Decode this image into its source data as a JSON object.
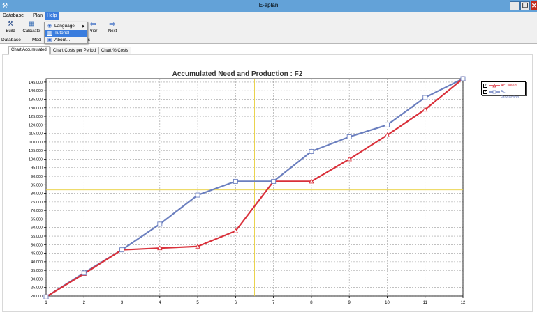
{
  "window": {
    "title": "E-aplan",
    "min_glyph": "–",
    "max_glyph": "❐",
    "close_glyph": "✕"
  },
  "menu": {
    "database": "Database",
    "plan": "Plan",
    "help": "Help"
  },
  "help_menu": {
    "language": "Language",
    "tutorial": "Tutorial",
    "about": "About..."
  },
  "toolbar": {
    "build": "Build",
    "calculate": "Calculate",
    "prior": "Prior",
    "next": "Next"
  },
  "module_tabs": {
    "database": "Database",
    "mod": "Mod",
    "cost_fragment": "ts"
  },
  "chart_tabs": {
    "accumulated": "Chart Accumulated",
    "per_period": "Chart Costs per Period",
    "percent": "Chart % Costs"
  },
  "colors": {
    "need": "#d9303a",
    "production": "#6b7fbf",
    "crosshair": "#e8cf3a",
    "title_bar": "#63a2d8",
    "menu_highlight": "#3a7dde"
  },
  "chart_data": {
    "type": "line",
    "title": "Accumulated Need and Production : F2",
    "x": [
      1,
      2,
      3,
      4,
      5,
      6,
      7,
      8,
      9,
      10,
      11,
      12
    ],
    "ylim": [
      20000,
      147000
    ],
    "yticks": [
      20000,
      25000,
      30000,
      35000,
      40000,
      45000,
      50000,
      55000,
      60000,
      65000,
      70000,
      75000,
      80000,
      85000,
      90000,
      95000,
      100000,
      105000,
      110000,
      115000,
      120000,
      125000,
      130000,
      135000,
      140000,
      145000
    ],
    "ytick_labels": [
      "20.000",
      "25.000",
      "30.000",
      "35.000",
      "40.000",
      "45.000",
      "50.000",
      "55.000",
      "60.000",
      "65.000",
      "70.000",
      "75.000",
      "80.000",
      "85.000",
      "90.000",
      "95.000",
      "100.000",
      "105.000",
      "110.000",
      "115.000",
      "120.000",
      "125.000",
      "130.000",
      "135.000",
      "140.000",
      "145.000"
    ],
    "grid": true,
    "legend_position": "top-right",
    "crosshair": {
      "x": 6.5,
      "y": 82000
    },
    "series": [
      {
        "name": "Ac. Need",
        "marker": "triangle",
        "values": [
          19500,
          33000,
          47000,
          48000,
          49000,
          58000,
          87000,
          87000,
          100000,
          114000,
          129000,
          147000
        ]
      },
      {
        "name": "Ac. Production",
        "marker": "square",
        "values": [
          19500,
          33500,
          47000,
          62000,
          79000,
          87000,
          87000,
          104500,
          113000,
          120000,
          136000,
          147000
        ]
      }
    ]
  }
}
